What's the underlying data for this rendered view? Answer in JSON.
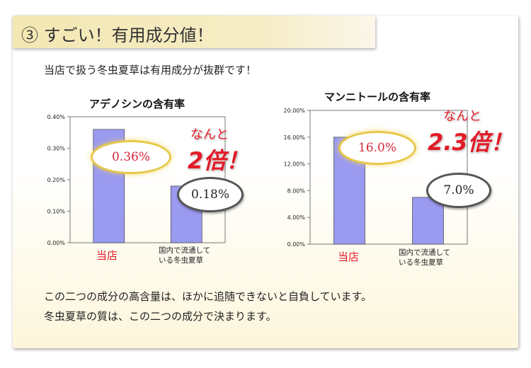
{
  "section_title": "③ すごい！有用成分値！",
  "intro": "当店で扱う冬虫夏草は有用成分が抜群です！",
  "footer": {
    "line1": "この二つの成分の高含量は、ほかに追随できないと自負しています。",
    "line2": "冬虫夏草の質は、この二つの成分で決まります。"
  },
  "colors": {
    "bar": "#9a9af0",
    "accent_red": "#e21b28",
    "gold": "#e6c84a"
  },
  "chart_data": [
    {
      "type": "bar",
      "title": "アデノシンの含有率",
      "categories": [
        "当店",
        "国内で流通して\nいる冬虫夏草"
      ],
      "values": [
        0.0036,
        0.0018
      ],
      "ylim": [
        0,
        0.004
      ],
      "yticks": [
        "0.00%",
        "0.10%",
        "0.20%",
        "0.30%",
        "0.40%"
      ],
      "grid": false,
      "value_labels": [
        "0.36%",
        "0.18%"
      ],
      "callout": {
        "line1": "なんと",
        "line2": "2倍！"
      }
    },
    {
      "type": "bar",
      "title": "マンニトールの含有率",
      "categories": [
        "当店",
        "国内で流通して\nいる冬虫夏草"
      ],
      "values": [
        0.16,
        0.07
      ],
      "ylim": [
        0,
        0.2
      ],
      "yticks": [
        "0.00%",
        "4.00%",
        "8.00%",
        "12.00%",
        "16.00%",
        "20.00%"
      ],
      "grid": false,
      "value_labels": [
        "16.0%",
        "7.0%"
      ],
      "callout": {
        "line1": "なんと",
        "line2": "2.3倍！"
      }
    }
  ]
}
